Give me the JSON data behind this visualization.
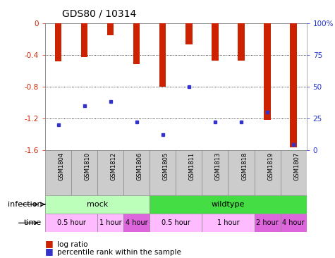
{
  "title": "GDS80 / 10314",
  "samples": [
    "GSM1804",
    "GSM1810",
    "GSM1812",
    "GSM1806",
    "GSM1805",
    "GSM1811",
    "GSM1813",
    "GSM1818",
    "GSM1819",
    "GSM1807"
  ],
  "log_ratios": [
    -0.48,
    -0.43,
    -0.15,
    -0.52,
    -0.8,
    -0.27,
    -0.47,
    -0.47,
    -1.22,
    -1.57
  ],
  "percentile_ranks": [
    20,
    35,
    38,
    22,
    12,
    50,
    22,
    22,
    30,
    4
  ],
  "ylim_left": [
    -1.6,
    0
  ],
  "ylim_right": [
    0,
    100
  ],
  "yticks_left": [
    0,
    -0.4,
    -0.8,
    -1.2,
    -1.6
  ],
  "yticks_right": [
    0,
    25,
    50,
    75,
    100
  ],
  "bar_color": "#cc2200",
  "dot_color": "#3333cc",
  "infection_groups": [
    {
      "label": "mock",
      "start": 0,
      "end": 4,
      "color": "#bbffbb"
    },
    {
      "label": "wildtype",
      "start": 4,
      "end": 10,
      "color": "#44dd44"
    }
  ],
  "time_groups": [
    {
      "label": "0.5 hour",
      "start": 0,
      "end": 2,
      "color": "#ffbbff"
    },
    {
      "label": "1 hour",
      "start": 2,
      "end": 3,
      "color": "#ffbbff"
    },
    {
      "label": "4 hour",
      "start": 3,
      "end": 4,
      "color": "#dd66dd"
    },
    {
      "label": "0.5 hour",
      "start": 4,
      "end": 6,
      "color": "#ffbbff"
    },
    {
      "label": "1 hour",
      "start": 6,
      "end": 8,
      "color": "#ffbbff"
    },
    {
      "label": "2 hour",
      "start": 8,
      "end": 9,
      "color": "#dd66dd"
    },
    {
      "label": "4 hour",
      "start": 9,
      "end": 10,
      "color": "#dd66dd"
    }
  ],
  "legend_log_ratio_label": "log ratio",
  "legend_percentile_label": "percentile rank within the sample",
  "infection_label": "infection",
  "time_label": "time",
  "background_color": "#ffffff",
  "axis_label_color_left": "#cc2200",
  "axis_label_color_right": "#2233cc",
  "sample_bg_color": "#cccccc",
  "border_color": "#888888"
}
